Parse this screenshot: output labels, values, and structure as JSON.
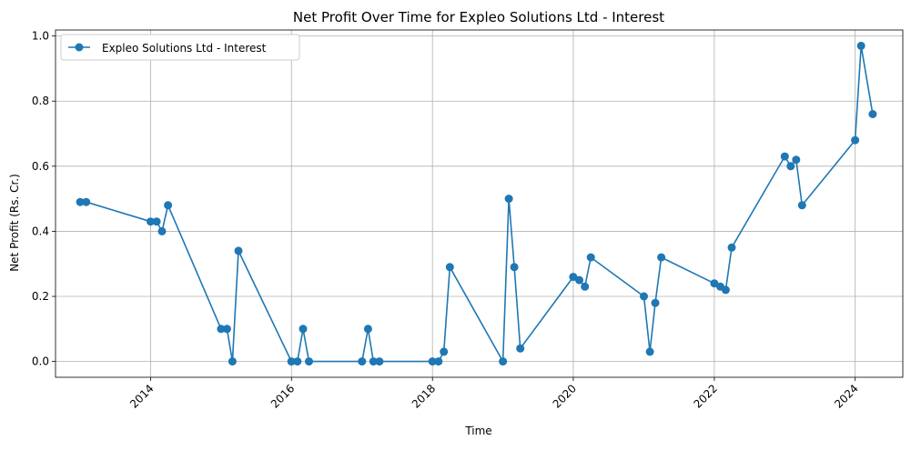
{
  "chart_data": {
    "type": "line",
    "title": "Net Profit Over Time for Expleo Solutions Ltd - Interest",
    "xlabel": "Time",
    "ylabel": "Net Profit (Rs. Cr.)",
    "xlim": [
      "2012-08-26",
      "2024-09-04"
    ],
    "ylim": [
      -0.0485,
      1.0185
    ],
    "x_ticks": [
      "2014",
      "2016",
      "2018",
      "2020",
      "2022",
      "2024"
    ],
    "y_ticks": [
      "0.0",
      "0.2",
      "0.4",
      "0.6",
      "0.8",
      "1.0"
    ],
    "grid": true,
    "legend": {
      "position": "upper-left"
    },
    "color": "#1f77b4",
    "series": [
      {
        "name": "Expleo Solutions Ltd - Interest",
        "x": [
          "2013-01-01",
          "2013-02-01",
          "2014-01-01",
          "2014-02-01",
          "2014-03-01",
          "2014-04-01",
          "2015-01-01",
          "2015-02-01",
          "2015-03-01",
          "2015-04-01",
          "2016-01-01",
          "2016-02-01",
          "2016-03-01",
          "2016-04-01",
          "2017-01-01",
          "2017-02-01",
          "2017-03-01",
          "2017-04-01",
          "2018-01-01",
          "2018-02-01",
          "2018-03-01",
          "2018-04-01",
          "2019-01-01",
          "2019-02-01",
          "2019-03-01",
          "2019-04-01",
          "2020-01-01",
          "2020-02-01",
          "2020-03-01",
          "2020-04-01",
          "2021-01-01",
          "2021-02-01",
          "2021-03-01",
          "2021-04-01",
          "2022-01-01",
          "2022-02-01",
          "2022-03-01",
          "2022-04-01",
          "2023-01-01",
          "2023-02-01",
          "2023-03-01",
          "2023-04-01",
          "2024-01-01",
          "2024-02-01",
          "2024-04-01"
        ],
        "values": [
          0.49,
          0.49,
          0.43,
          0.43,
          0.4,
          0.48,
          0.1,
          0.1,
          0.0,
          0.34,
          0.0,
          0.0,
          0.1,
          0.0,
          0.0,
          0.1,
          0.0,
          0.0,
          0.0,
          0.0,
          0.03,
          0.29,
          0.0,
          0.5,
          0.29,
          0.04,
          0.26,
          0.25,
          0.23,
          0.32,
          0.2,
          0.03,
          0.18,
          0.32,
          0.24,
          0.23,
          0.22,
          0.35,
          0.63,
          0.6,
          0.62,
          0.48,
          0.68,
          0.97,
          0.76
        ]
      }
    ]
  }
}
